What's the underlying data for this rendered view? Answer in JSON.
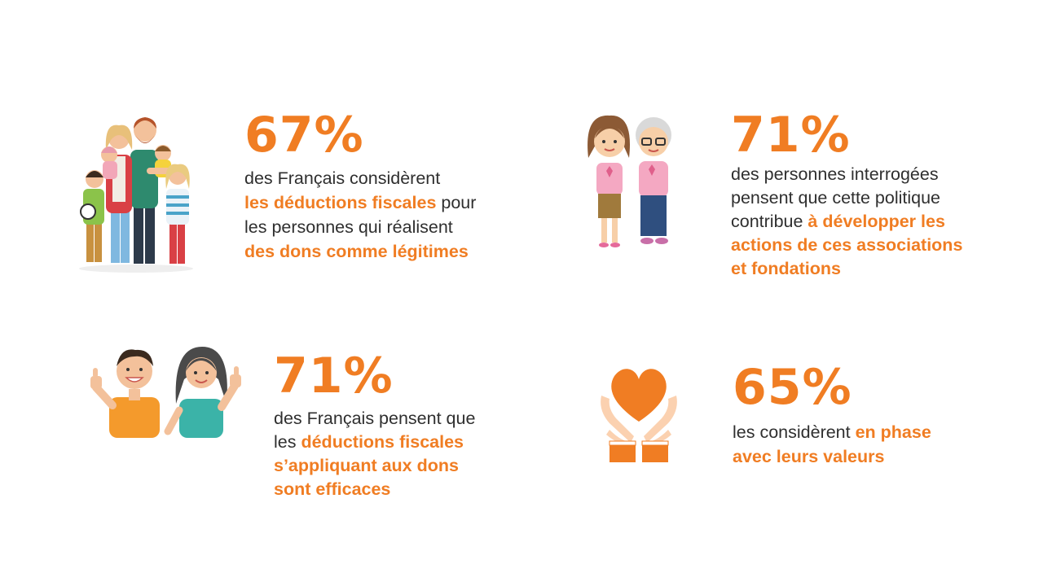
{
  "colors": {
    "accent": "#f07d23",
    "text": "#2f2f2f",
    "background": "#ffffff"
  },
  "stats": [
    {
      "icon": "family-icon",
      "value": "67%",
      "line1": "des Français considèrent",
      "line2_highlight": "les déductions fiscales",
      "line2_rest": " pour",
      "line3": "les personnes qui réalisent",
      "line4_highlight": "des dons comme légitimes"
    },
    {
      "icon": "women-pink-ribbon-icon",
      "value": "71%",
      "line1": "des personnes interrogées",
      "line2": "pensent que cette politique",
      "line3_plain": "contribue ",
      "line3_highlight": "à développer les",
      "line4_highlight": "actions de ces associations",
      "line5_highlight": "et fondations"
    },
    {
      "icon": "thumbs-up-couple-icon",
      "value": "71%",
      "line1": "des Français pensent que",
      "line2_plain": "les ",
      "line2_highlight": "déductions fiscales",
      "line3_highlight": "s’appliquant aux dons",
      "line4_highlight": "sont efficaces"
    },
    {
      "icon": "heart-in-hands-icon",
      "value": "65%",
      "line1_plain": "les considèrent ",
      "line1_highlight": "en phase",
      "line2_highlight": "avec leurs valeurs"
    }
  ]
}
